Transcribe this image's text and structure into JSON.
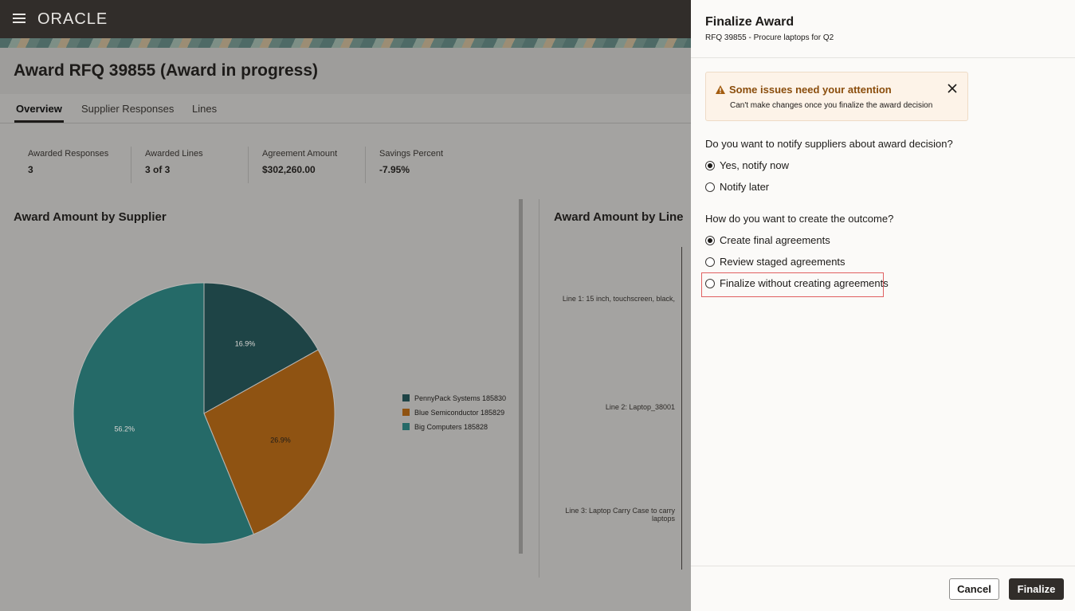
{
  "header": {
    "brand": "ORACLE"
  },
  "page": {
    "title": "Award RFQ 39855 (Award in progress)",
    "tabs": [
      {
        "label": "Overview",
        "selected": true
      },
      {
        "label": "Supplier Responses",
        "selected": false
      },
      {
        "label": "Lines",
        "selected": false
      }
    ],
    "metrics": [
      {
        "label": "Awarded Responses",
        "value": "3"
      },
      {
        "label": "Awarded Lines",
        "value": "3 of 3"
      },
      {
        "label": "Agreement Amount",
        "value": "$302,260.00"
      },
      {
        "label": "Savings Percent",
        "value": "-7.95%"
      }
    ]
  },
  "pie_chart": {
    "type": "pie",
    "title": "Award Amount by Supplier",
    "categories": [
      "PennyPack Systems 185830",
      "Blue Semiconductor 185829",
      "Big Computers 185828"
    ],
    "values": [
      16.9,
      26.9,
      56.2
    ],
    "value_labels": [
      "16.9%",
      "26.9%",
      "56.2%"
    ],
    "colors": [
      "#1e4446",
      "#8f5312",
      "#256a68"
    ]
  },
  "line_chart": {
    "title": "Award Amount by Line",
    "categories": [
      "Line 1: 15 inch, touchscreen, black,",
      "Line 2: Laptop_38001",
      "Line 3: Laptop Carry Case to carry laptops"
    ]
  },
  "drawer": {
    "title": "Finalize Award",
    "subtitle": "RFQ 39855 - Procure laptops for Q2",
    "alert": {
      "title": "Some issues need your attention",
      "message": "Can't make changes once you finalize the award decision"
    },
    "questions": [
      {
        "label": "Do you want to notify suppliers about award decision?",
        "options": [
          {
            "label": "Yes, notify now",
            "selected": true
          },
          {
            "label": "Notify later",
            "selected": false
          }
        ]
      },
      {
        "label": "How do you want to create the outcome?",
        "options": [
          {
            "label": "Create final agreements",
            "selected": true
          },
          {
            "label": "Review staged agreements",
            "selected": false
          },
          {
            "label": "Finalize without creating agreements",
            "selected": false,
            "highlighted": true
          }
        ]
      }
    ],
    "buttons": {
      "cancel": "Cancel",
      "finalize": "Finalize"
    }
  }
}
